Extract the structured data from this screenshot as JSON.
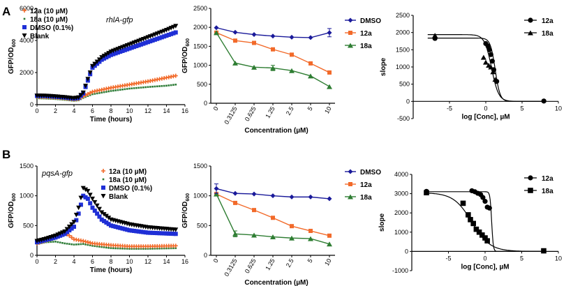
{
  "colors": {
    "blue": "#1f2fd6",
    "navy": "#1a1a9a",
    "orange": "#f26a2a",
    "green": "#2e7d32",
    "greendark": "#2a7a34",
    "black": "#000000"
  },
  "panels": {
    "a": "A",
    "b": "B"
  },
  "chart_data": [
    {
      "id": "A1",
      "type": "scatter",
      "gene": "rhlA-gfp",
      "xlabel": "Time (hours)",
      "ylabel": "GFP/OD",
      "ylabel_sub": "600",
      "xlim": [
        0,
        16
      ],
      "ylim": [
        0,
        6000
      ],
      "xticks": [
        0,
        2,
        4,
        6,
        8,
        10,
        12,
        14,
        16
      ],
      "yticks": [
        0,
        2000,
        4000,
        6000
      ],
      "legend": [
        "12a (10 µM)",
        "18a (10 µM)",
        "DMSO (0.1%)",
        "Blank"
      ],
      "series": [
        {
          "name": "12a (10 µM)",
          "anchors": [
            [
              0,
              500
            ],
            [
              1,
              480
            ],
            [
              2,
              450
            ],
            [
              3,
              400
            ],
            [
              4,
              330
            ],
            [
              4.5,
              360
            ],
            [
              5,
              520
            ],
            [
              6,
              800
            ],
            [
              8,
              1050
            ],
            [
              10,
              1250
            ],
            [
              12,
              1450
            ],
            [
              14,
              1680
            ],
            [
              15,
              1800
            ]
          ]
        },
        {
          "name": "18a (10 µM)",
          "anchors": [
            [
              0,
              400
            ],
            [
              1,
              380
            ],
            [
              2,
              350
            ],
            [
              3,
              300
            ],
            [
              4,
              240
            ],
            [
              4.5,
              270
            ],
            [
              5,
              420
            ],
            [
              6,
              650
            ],
            [
              8,
              850
            ],
            [
              10,
              1000
            ],
            [
              12,
              1100
            ],
            [
              14,
              1180
            ],
            [
              15,
              1250
            ]
          ]
        },
        {
          "name": "DMSO (0.1%)",
          "anchors": [
            [
              0,
              550
            ],
            [
              1,
              540
            ],
            [
              2,
              500
            ],
            [
              3,
              450
            ],
            [
              4,
              380
            ],
            [
              4.5,
              420
            ],
            [
              5,
              700
            ],
            [
              5.5,
              1500
            ],
            [
              6,
              2300
            ],
            [
              7,
              2800
            ],
            [
              8,
              3100
            ],
            [
              10,
              3500
            ],
            [
              12,
              3900
            ],
            [
              14,
              4300
            ],
            [
              15,
              4500
            ]
          ]
        },
        {
          "name": "Blank",
          "anchors": [
            [
              0,
              560
            ],
            [
              1,
              550
            ],
            [
              2,
              510
            ],
            [
              3,
              460
            ],
            [
              4,
              400
            ],
            [
              4.5,
              450
            ],
            [
              5,
              750
            ],
            [
              5.5,
              1600
            ],
            [
              6,
              2400
            ],
            [
              7,
              2950
            ],
            [
              8,
              3300
            ],
            [
              10,
              3750
            ],
            [
              12,
              4200
            ],
            [
              14,
              4650
            ],
            [
              15,
              4900
            ]
          ]
        }
      ]
    },
    {
      "id": "A2",
      "type": "line",
      "xlabel": "Concentration (µM)",
      "ylabel": "GFP/OD",
      "ylabel_sub": "600",
      "categories": [
        "0",
        "0.3125",
        "0.625",
        "1.25",
        "2.5",
        "5",
        "10"
      ],
      "ylim": [
        0,
        2500
      ],
      "yticks": [
        0,
        500,
        1000,
        1500,
        2000,
        2500
      ],
      "legend": [
        "DMSO",
        "12a",
        "18a"
      ],
      "series": [
        {
          "name": "DMSO",
          "values": [
            1990,
            1870,
            1810,
            1770,
            1740,
            1730,
            1860
          ]
        },
        {
          "name": "12a",
          "values": [
            1860,
            1650,
            1590,
            1420,
            1280,
            1050,
            810
          ]
        },
        {
          "name": "18a",
          "values": [
            1860,
            1060,
            950,
            930,
            860,
            720,
            440
          ]
        }
      ]
    },
    {
      "id": "A3",
      "type": "scatter",
      "xlabel": "log [Conc], µM",
      "ylabel": "slope",
      "xlim": [
        -10,
        10
      ],
      "ylim": [
        -500,
        2500
      ],
      "xticks": [
        -5,
        0,
        5,
        10
      ],
      "yticks": [
        -500,
        0,
        500,
        1000,
        1500,
        2000,
        2500
      ],
      "legend": [
        "12a",
        "18a"
      ],
      "series": [
        {
          "name": "12a",
          "points": [
            [
              -7,
              1830
            ],
            [
              0,
              1680
            ],
            [
              0.3,
              1610
            ],
            [
              0.5,
              1500
            ],
            [
              0.7,
              1360
            ],
            [
              0.9,
              1170
            ],
            [
              1.1,
              920
            ],
            [
              1.5,
              580
            ],
            [
              8,
              10
            ]
          ],
          "fit": {
            "top": 1840,
            "bottom": 0,
            "ic50": 1.3,
            "hill": 1.3
          }
        },
        {
          "name": "18a",
          "points": [
            [
              -7,
              1920
            ],
            [
              -0.3,
              1280
            ],
            [
              0,
              1140
            ],
            [
              0.4,
              1050
            ],
            [
              0.7,
              1000
            ],
            [
              1.0,
              860
            ],
            [
              1.3,
              640
            ]
          ],
          "fit": {
            "top": 1940,
            "bottom": 0,
            "ic50": 0.8,
            "hill": 0.9
          }
        }
      ]
    },
    {
      "id": "B1",
      "type": "scatter",
      "gene": "pqsA-gfp",
      "xlabel": "Time (hours)",
      "ylabel": "GFP/OD",
      "ylabel_sub": "600",
      "xlim": [
        0,
        16
      ],
      "ylim": [
        0,
        1500
      ],
      "xticks": [
        0,
        2,
        4,
        6,
        8,
        10,
        12,
        14,
        16
      ],
      "yticks": [
        0,
        500,
        1000,
        1500
      ],
      "legend": [
        "12a (10 µM)",
        "18a (10 µM)",
        "DMSO (0.1%)",
        "Blank"
      ],
      "series": [
        {
          "name": "12a (10 µM)",
          "anchors": [
            [
              0,
              200
            ],
            [
              1,
              250
            ],
            [
              2,
              300
            ],
            [
              2.5,
              340
            ],
            [
              3,
              380
            ],
            [
              3.5,
              330
            ],
            [
              4,
              270
            ],
            [
              5,
              240
            ],
            [
              6,
              200
            ],
            [
              8,
              170
            ],
            [
              10,
              150
            ],
            [
              12,
              150
            ],
            [
              15,
              160
            ]
          ]
        },
        {
          "name": "18a (10 µM)",
          "anchors": [
            [
              0,
              190
            ],
            [
              1,
              220
            ],
            [
              2,
              230
            ],
            [
              3,
              200
            ],
            [
              4,
              180
            ],
            [
              5,
              190
            ],
            [
              6,
              160
            ],
            [
              8,
              120
            ],
            [
              10,
              110
            ],
            [
              12,
              110
            ],
            [
              15,
              120
            ]
          ]
        },
        {
          "name": "DMSO (0.1%)",
          "anchors": [
            [
              0,
              220
            ],
            [
              1,
              260
            ],
            [
              2,
              300
            ],
            [
              3,
              360
            ],
            [
              4,
              480
            ],
            [
              4.5,
              700
            ],
            [
              5,
              1000
            ],
            [
              5.5,
              950
            ],
            [
              6,
              800
            ],
            [
              7,
              600
            ],
            [
              8,
              500
            ],
            [
              10,
              420
            ],
            [
              12,
              380
            ],
            [
              15,
              360
            ]
          ]
        },
        {
          "name": "Blank",
          "anchors": [
            [
              0,
              240
            ],
            [
              1,
              280
            ],
            [
              2,
              330
            ],
            [
              3,
              400
            ],
            [
              4,
              560
            ],
            [
              4.5,
              800
            ],
            [
              5,
              1130
            ],
            [
              5.5,
              1080
            ],
            [
              6,
              950
            ],
            [
              7,
              720
            ],
            [
              8,
              600
            ],
            [
              10,
              520
            ],
            [
              12,
              470
            ],
            [
              15,
              430
            ]
          ]
        }
      ]
    },
    {
      "id": "B2",
      "type": "line",
      "xlabel": "Concentration (µM)",
      "ylabel": "GFP/OD",
      "ylabel_sub": "600",
      "categories": [
        "0",
        "0.3125",
        "0.625",
        "1.25",
        "2.5",
        "5",
        "10"
      ],
      "ylim": [
        0,
        1500
      ],
      "yticks": [
        0,
        500,
        1000,
        1500
      ],
      "legend": [
        "DMSO",
        "12a",
        "18a"
      ],
      "series": [
        {
          "name": "DMSO",
          "values": [
            1120,
            1040,
            1030,
            1000,
            980,
            980,
            950
          ]
        },
        {
          "name": "12a",
          "values": [
            1030,
            880,
            760,
            630,
            490,
            410,
            330
          ]
        },
        {
          "name": "18a",
          "values": [
            1030,
            360,
            340,
            310,
            290,
            280,
            190
          ]
        }
      ]
    },
    {
      "id": "B3",
      "type": "scatter",
      "xlabel": "log [Conc], µM",
      "ylabel": "slope",
      "xlim": [
        -10,
        10
      ],
      "ylim": [
        -1000,
        4000
      ],
      "xticks": [
        -5,
        0,
        5,
        10
      ],
      "yticks": [
        -1000,
        0,
        1000,
        2000,
        3000,
        4000
      ],
      "legend": [
        "12a",
        "18a"
      ],
      "series": [
        {
          "name": "12a",
          "points": [
            [
              -8,
              3120
            ],
            [
              -1.8,
              3150
            ],
            [
              -1.4,
              3100
            ],
            [
              -1,
              3020
            ],
            [
              -0.6,
              2950
            ],
            [
              -0.3,
              2800
            ],
            [
              0,
              2600
            ],
            [
              0.3,
              2300
            ],
            [
              0.6,
              2250
            ],
            [
              8,
              30
            ]
          ],
          "fit": {
            "top": 3100,
            "bottom": 0,
            "ic50": 0.9,
            "hill": 4
          }
        },
        {
          "name": "18a",
          "points": [
            [
              -8,
              3050
            ],
            [
              -3,
              2500
            ],
            [
              -2.3,
              1900
            ],
            [
              -2,
              1650
            ],
            [
              -1.6,
              1450
            ],
            [
              -1.2,
              1150
            ],
            [
              -0.8,
              1000
            ],
            [
              -0.4,
              850
            ],
            [
              0,
              700
            ],
            [
              0.3,
              550
            ],
            [
              8,
              30
            ]
          ],
          "fit": {
            "top": 3050,
            "bottom": 0,
            "ic50": -1.8,
            "hill": 0.35
          }
        }
      ]
    }
  ]
}
